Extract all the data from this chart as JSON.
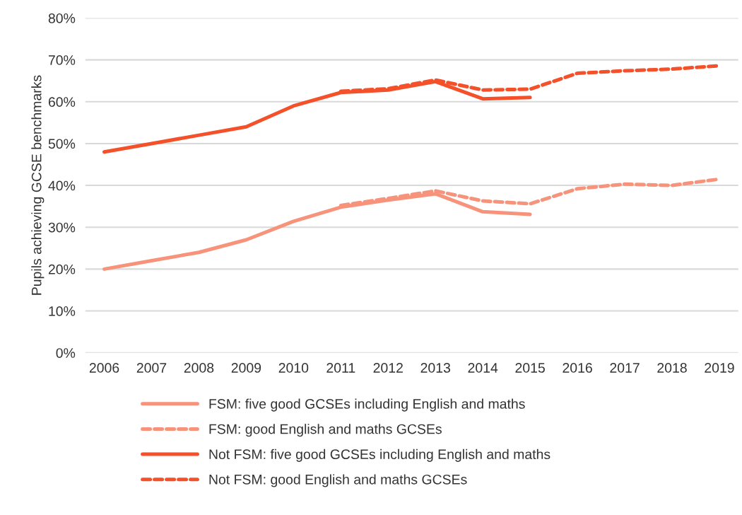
{
  "chart_data": {
    "type": "line",
    "ylabel": "Pupils achieving GCSE benchmarks",
    "categories": [
      "2006",
      "2007",
      "2008",
      "2009",
      "2010",
      "2011",
      "2012",
      "2013",
      "2014",
      "2015",
      "2016",
      "2017",
      "2018",
      "2019"
    ],
    "series": [
      {
        "name": "FSM: five good GCSEs including English and maths",
        "color": "#f7937a",
        "line_style": "solid",
        "values": [
          20,
          22,
          24,
          27,
          31.4,
          34.8,
          36.5,
          38,
          33.7,
          33.1,
          null,
          null,
          null,
          null
        ]
      },
      {
        "name": "FSM: good English and maths GCSEs",
        "color": "#f7937a",
        "line_style": "dashed",
        "values": [
          null,
          null,
          null,
          null,
          null,
          35.2,
          36.9,
          38.7,
          36.3,
          35.6,
          39.2,
          40.3,
          40,
          41.5
        ]
      },
      {
        "name": "Not FSM: five good GCSEs including English and maths",
        "color": "#f4502a",
        "line_style": "solid",
        "values": [
          48,
          50,
          52,
          54,
          59,
          62.2,
          62.8,
          64.8,
          60.7,
          61,
          null,
          null,
          null,
          null
        ]
      },
      {
        "name": "Not FSM: good English and maths GCSEs",
        "color": "#f4502a",
        "line_style": "dashed",
        "values": [
          null,
          null,
          null,
          null,
          null,
          62.5,
          63.1,
          65.2,
          62.8,
          63,
          66.8,
          67.4,
          67.8,
          68.6
        ]
      }
    ],
    "ylim": [
      0,
      80
    ],
    "yticks": [
      {
        "value": 0,
        "label": "0%"
      },
      {
        "value": 10,
        "label": "10%"
      },
      {
        "value": 20,
        "label": "20%"
      },
      {
        "value": 30,
        "label": "30%"
      },
      {
        "value": 40,
        "label": "40%"
      },
      {
        "value": 50,
        "label": "50%"
      },
      {
        "value": 60,
        "label": "60%"
      },
      {
        "value": 70,
        "label": "70%"
      },
      {
        "value": 80,
        "label": "80%"
      }
    ],
    "grid": "y",
    "legend": "bottom"
  }
}
